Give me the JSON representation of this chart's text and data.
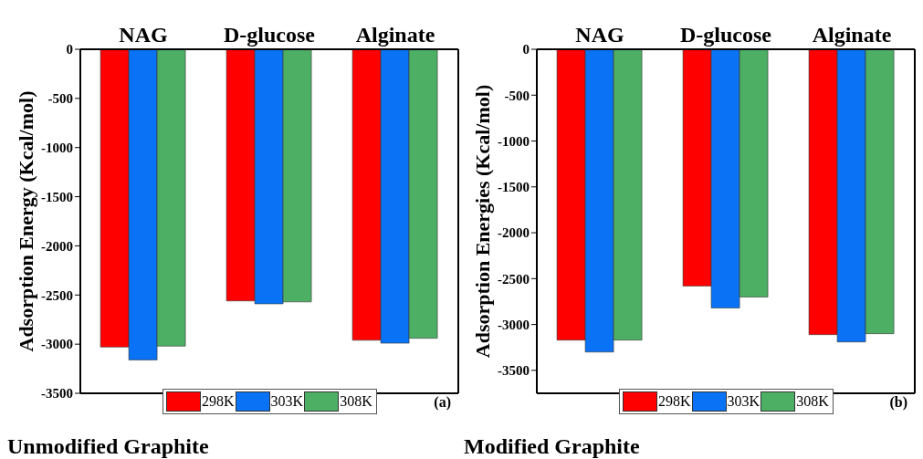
{
  "chart_data": [
    {
      "type": "bar",
      "title": "Unmodified Graphite",
      "ylabel": "Adsorption Energy (Kcal/mol)",
      "categories": [
        "NAG",
        "D-glucose",
        "Alginate"
      ],
      "series": [
        {
          "name": "298K",
          "color": "#ff0000",
          "values": [
            -3030,
            -2560,
            -2960
          ]
        },
        {
          "name": "303K",
          "color": "#0a72f5",
          "values": [
            -3160,
            -2590,
            -2990
          ]
        },
        {
          "name": "308K",
          "color": "#4caf64",
          "values": [
            -3020,
            -2570,
            -2940
          ]
        }
      ],
      "ylim": [
        -3500,
        0
      ],
      "yticks": [
        -3500,
        -3000,
        -2500,
        -2000,
        -1500,
        -1000,
        -500,
        0
      ],
      "grid": false,
      "legend": "bottom",
      "annotations": [
        "(a)"
      ]
    },
    {
      "type": "bar",
      "title": "Modified Graphite",
      "ylabel": "Adsorption Energies (Kcal/mol)",
      "categories": [
        "NAG",
        "D-glucose",
        "Alginate"
      ],
      "series": [
        {
          "name": "298K",
          "color": "#ff0000",
          "values": [
            -3170,
            -2580,
            -3110
          ]
        },
        {
          "name": "303K",
          "color": "#0a72f5",
          "values": [
            -3300,
            -2820,
            -3190
          ]
        },
        {
          "name": "308K",
          "color": "#4caf64",
          "values": [
            -3170,
            -2700,
            -3100
          ]
        }
      ],
      "ylim": [
        -3750,
        0
      ],
      "yticks": [
        -3500,
        -3000,
        -2500,
        -2000,
        -1500,
        -1000,
        -500,
        0
      ],
      "grid": false,
      "legend": "bottom",
      "annotations": [
        "(b)"
      ]
    }
  ]
}
